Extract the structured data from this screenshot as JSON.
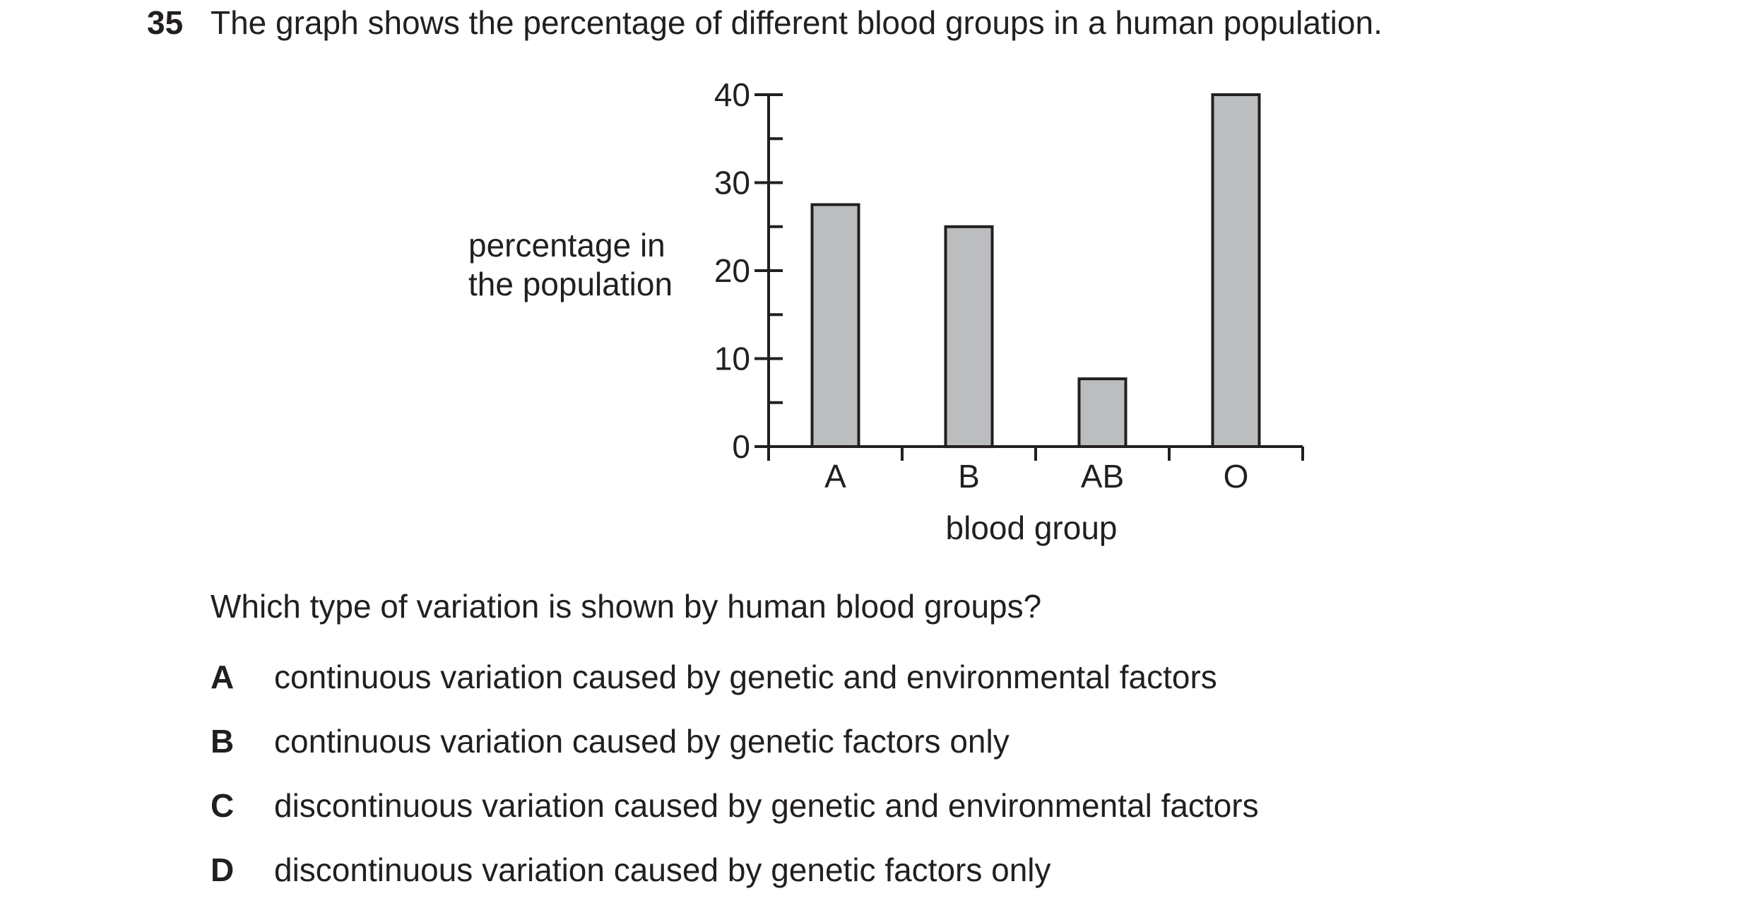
{
  "question": {
    "number": "35",
    "stem": "The graph shows the percentage of different blood groups in a human population.",
    "prompt": "Which type of variation is shown by human blood groups?",
    "options": [
      {
        "letter": "A",
        "text": "continuous variation caused by genetic and environmental factors"
      },
      {
        "letter": "B",
        "text": "continuous variation caused by genetic factors only"
      },
      {
        "letter": "C",
        "text": "discontinuous variation caused by genetic and environmental factors"
      },
      {
        "letter": "D",
        "text": "discontinuous variation caused by genetic factors only"
      }
    ]
  },
  "chart_data": {
    "type": "bar",
    "categories": [
      "A",
      "B",
      "AB",
      "O"
    ],
    "values": [
      27.5,
      25,
      7.7,
      40
    ],
    "xlabel": "blood group",
    "ylabel_lines": [
      "percentage in",
      "the population"
    ],
    "ylim": [
      0,
      40
    ],
    "yticks_major": [
      0,
      10,
      20,
      30,
      40
    ],
    "yminor_step": 5,
    "grid": false,
    "bar_color": "#bcbdbf",
    "line_color": "#231f20"
  }
}
